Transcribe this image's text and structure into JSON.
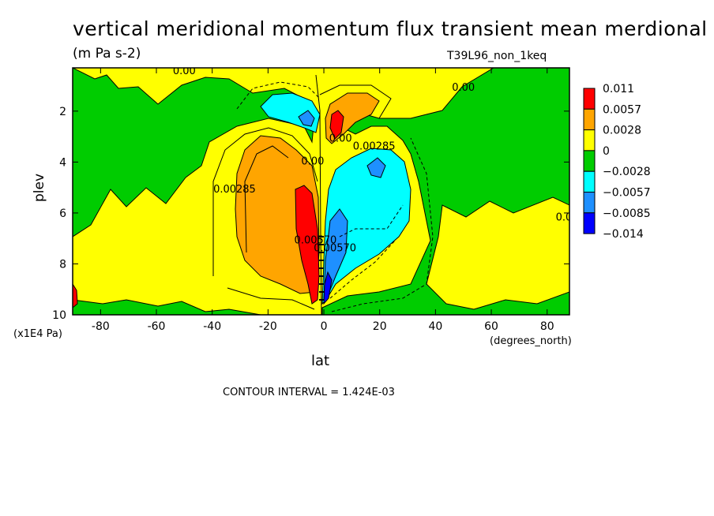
{
  "title": "vertical meridional momentum flux transient mean merdional",
  "units": "(m Pa s-2)",
  "run_label": "T39L96_non_1keq",
  "contour_interval": "CONTOUR INTERVAL = 1.424E-03",
  "chart_data": {
    "type": "heatmap",
    "title": "vertical meridional momentum flux transient mean merdional",
    "xlabel": "lat",
    "xunit": "(degrees_north)",
    "ylabel": "plev",
    "yunit": "(x1E4 Pa)",
    "xlim": [
      -90,
      88
    ],
    "ylim": [
      10,
      0.3
    ],
    "xticks": [
      -80,
      -60,
      -40,
      -20,
      0,
      20,
      40,
      60,
      80
    ],
    "yticks": [
      2,
      4,
      6,
      8,
      10
    ],
    "legend": {
      "placement": "right",
      "levels": [
        "0.011",
        "0.0057",
        "0.0028",
        "0",
        "-0.0028",
        "-0.0057",
        "-0.0085",
        "-0.014"
      ],
      "colors": [
        "#ff0000",
        "#ffa500",
        "#ffff00",
        "#00cc00",
        "#00ffff",
        "#1e90ff",
        "#0000ff"
      ]
    },
    "contour_labels": [
      {
        "text": "0.00",
        "lat": -50,
        "plev": 0.55
      },
      {
        "text": "0.00",
        "lat": 50,
        "plev": 1.2
      },
      {
        "text": "0.00285",
        "lat": -32,
        "plev": 5.2
      },
      {
        "text": "0.00",
        "lat": -4,
        "plev": 4.1
      },
      {
        "text": "0.00",
        "lat": 6,
        "plev": 3.2
      },
      {
        "text": "0.00285",
        "lat": 18,
        "plev": 3.5
      },
      {
        "text": "0.00570",
        "lat": -3,
        "plev": 7.2
      },
      {
        "text": "0.00570",
        "lat": 4,
        "plev": 7.5
      },
      {
        "text": "0.0",
        "lat": 86,
        "plev": 6.3
      }
    ],
    "peak_values": {
      "max": 0.011,
      "min": -0.014
    }
  }
}
